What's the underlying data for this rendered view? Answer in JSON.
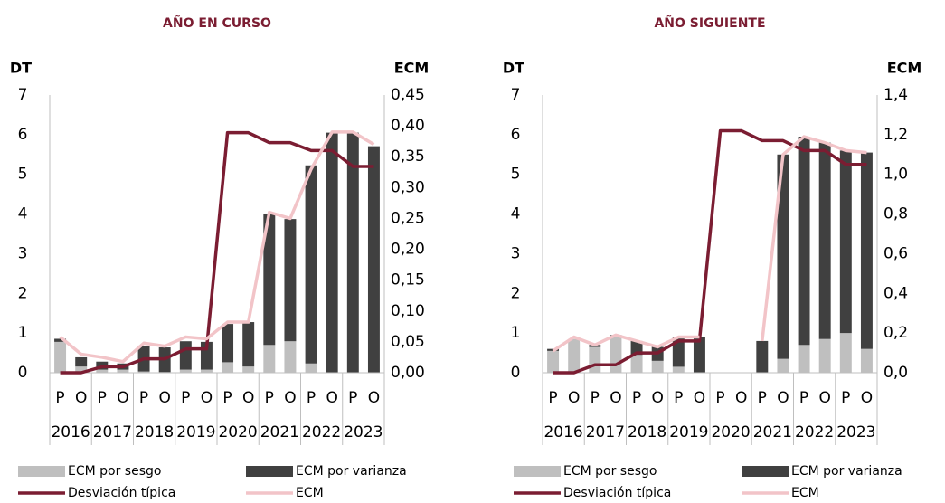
{
  "chart_data": [
    {
      "type": "bar",
      "title": "AÑO EN CURSO",
      "y_label": "DT",
      "y2_label": "ECM",
      "categories": [
        "P",
        "O",
        "P",
        "O",
        "P",
        "O",
        "P",
        "O",
        "P",
        "O",
        "P",
        "O",
        "P",
        "O",
        "P",
        "O"
      ],
      "groups": [
        "2016",
        "2017",
        "2018",
        "2019",
        "2020",
        "2021",
        "2022",
        "2023"
      ],
      "ylim": [
        0,
        7
      ],
      "yticks": [
        0,
        1,
        2,
        3,
        4,
        5,
        6,
        7
      ],
      "y2lim": [
        0,
        0.45
      ],
      "y2ticks": [
        {
          "value": 0,
          "label": "0,00"
        },
        {
          "value": 0.05,
          "label": "0,05"
        },
        {
          "value": 0.1,
          "label": "0,10"
        },
        {
          "value": 0.15,
          "label": "0,15"
        },
        {
          "value": 0.2,
          "label": "0,20"
        },
        {
          "value": 0.25,
          "label": "0,25"
        },
        {
          "value": 0.3,
          "label": "0,30"
        },
        {
          "value": 0.35,
          "label": "0,35"
        },
        {
          "value": 0.4,
          "label": "0,40"
        },
        {
          "value": 0.45,
          "label": "0,45"
        }
      ],
      "stacked": true,
      "series": [
        {
          "name": "ECM por sesgo",
          "type": "bar",
          "axis": "y2",
          "color": "#bfbfbf",
          "values": [
            0.05,
            0.01,
            0.005,
            0.005,
            0.002,
            0.001,
            0.005,
            0.005,
            0.017,
            0.01,
            0.045,
            0.051,
            0.015,
            0,
            0,
            0
          ]
        },
        {
          "name": "ECM por varianza",
          "type": "bar",
          "axis": "y2",
          "color": "#404040",
          "values": [
            0.005,
            0.015,
            0.013,
            0.01,
            0.042,
            0.04,
            0.046,
            0.045,
            0.062,
            0.072,
            0.213,
            0.198,
            0.321,
            0.389,
            0.389,
            0.367
          ]
        },
        {
          "name": "Desviación típica",
          "type": "line",
          "axis": "y",
          "color": "#7b1d32",
          "values": [
            0,
            0,
            0.15,
            0.15,
            0.35,
            0.35,
            0.6,
            0.6,
            6.05,
            6.05,
            5.8,
            5.8,
            5.6,
            5.6,
            5.2,
            5.2
          ]
        },
        {
          "name": "ECM",
          "type": "line",
          "axis": "y2",
          "color": "#f2c4c8",
          "values": [
            0.058,
            0.03,
            0.025,
            0.018,
            0.048,
            0.043,
            0.058,
            0.055,
            0.082,
            0.082,
            0.26,
            0.25,
            0.33,
            0.39,
            0.39,
            0.37
          ]
        }
      ]
    },
    {
      "type": "bar",
      "title": "AÑO SIGUIENTE",
      "y_label": "DT",
      "y2_label": "ECM",
      "categories": [
        "P",
        "O",
        "P",
        "O",
        "P",
        "O",
        "P",
        "O",
        "P",
        "O",
        "P",
        "O",
        "P",
        "O",
        "P",
        "O"
      ],
      "groups": [
        "2016",
        "2017",
        "2018",
        "2019",
        "2020",
        "2021",
        "2022",
        "2023"
      ],
      "ylim": [
        0,
        7
      ],
      "yticks": [
        0,
        1,
        2,
        3,
        4,
        5,
        6,
        7
      ],
      "y2lim": [
        0,
        1.4
      ],
      "y2ticks": [
        {
          "value": 0,
          "label": "0,0"
        },
        {
          "value": 0.2,
          "label": "0,2"
        },
        {
          "value": 0.4,
          "label": "0,4"
        },
        {
          "value": 0.6,
          "label": "0,6"
        },
        {
          "value": 0.8,
          "label": "0,8"
        },
        {
          "value": 1,
          "label": "1,0"
        },
        {
          "value": 1.2,
          "label": "1,2"
        },
        {
          "value": 1.4,
          "label": "1,4"
        }
      ],
      "stacked": true,
      "series": [
        {
          "name": "ECM por sesgo",
          "type": "bar",
          "axis": "y2",
          "color": "#bfbfbf",
          "values": [
            0.11,
            0.17,
            0.13,
            0.18,
            0.09,
            0.06,
            0.03,
            0,
            null,
            null,
            0,
            0.07,
            0.14,
            0.17,
            0.2,
            0.12
          ]
        },
        {
          "name": "ECM por varianza",
          "type": "bar",
          "axis": "y2",
          "color": "#404040",
          "values": [
            0.01,
            0,
            0.01,
            0.01,
            0.07,
            0.07,
            0.15,
            0.18,
            null,
            null,
            0.16,
            1.03,
            1.05,
            0.99,
            0.92,
            0.99
          ]
        },
        {
          "name": "Desviación típica",
          "type": "line",
          "axis": "y",
          "color": "#7b1d32",
          "values": [
            0,
            0,
            0.2,
            0.2,
            0.5,
            0.5,
            0.8,
            0.8,
            6.1,
            6.1,
            5.85,
            5.85,
            5.6,
            5.6,
            5.25,
            5.25
          ]
        },
        {
          "name": "ECM",
          "type": "line",
          "axis": "y2",
          "color": "#f2c4c8",
          "values": [
            0.11,
            0.18,
            0.14,
            0.19,
            0.16,
            0.13,
            0.18,
            0.18,
            null,
            null,
            0.16,
            1.1,
            1.19,
            1.16,
            1.12,
            1.11
          ]
        }
      ]
    }
  ]
}
